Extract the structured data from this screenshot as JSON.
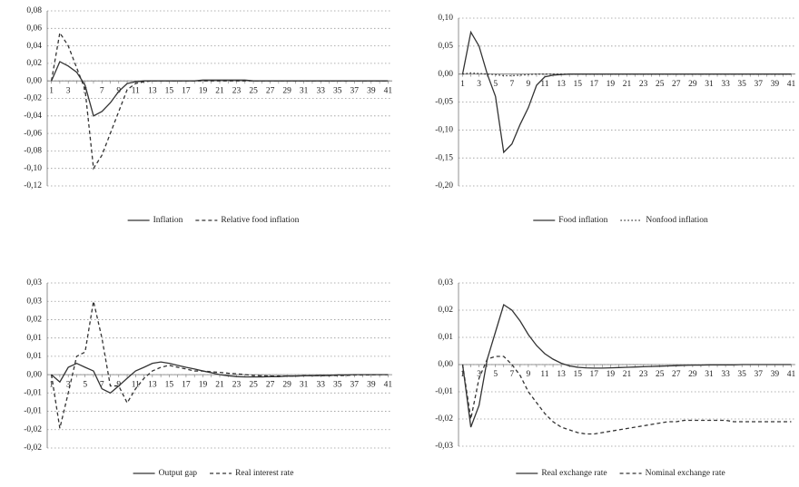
{
  "chart_data": [
    {
      "type": "line",
      "categories": [
        "1",
        null,
        "3",
        null,
        "5",
        null,
        "7",
        null,
        "9",
        null,
        "11",
        null,
        "13",
        null,
        "15",
        null,
        "17",
        null,
        "19",
        null,
        "21",
        null,
        "23",
        null,
        "25",
        null,
        "27",
        null,
        "29",
        null,
        "31",
        null,
        "33",
        null,
        "35",
        null,
        "37",
        null,
        "39",
        null,
        "41"
      ],
      "ylim": [
        -0.12,
        0.08
      ],
      "yticks": [
        {
          "value": 0.08,
          "label": "0,08"
        },
        {
          "value": 0.06,
          "label": "0,06"
        },
        {
          "value": 0.04,
          "label": "0,04"
        },
        {
          "value": 0.02,
          "label": "0,02"
        },
        {
          "value": 0,
          "label": "0,00"
        },
        {
          "value": -0.02,
          "label": "-0,02"
        },
        {
          "value": -0.04,
          "label": "-0,04"
        },
        {
          "value": -0.06,
          "label": "-0,06"
        },
        {
          "value": -0.08,
          "label": "-0,08"
        },
        {
          "value": -0.1,
          "label": "-0,10"
        },
        {
          "value": -0.12,
          "label": "-0,12"
        }
      ],
      "grid": true,
      "series": [
        {
          "name": "Inflation",
          "color": "#333333",
          "dash": "solid",
          "values": [
            0,
            0.022,
            0.017,
            0.01,
            -0.005,
            -0.04,
            -0.035,
            -0.025,
            -0.012,
            -0.003,
            -0.001,
            0,
            0,
            0,
            0,
            0,
            0,
            0,
            0.001,
            0.001,
            0.001,
            0.001,
            0.001,
            0.001,
            0,
            0,
            0,
            0,
            0,
            0,
            0,
            0,
            0,
            0,
            0,
            0,
            0,
            0,
            0,
            0,
            0
          ]
        },
        {
          "name": "Relative food inflation",
          "color": "#333333",
          "dash": "dashed",
          "values": [
            0,
            0.055,
            0.04,
            0.015,
            -0.01,
            -0.1,
            -0.085,
            -0.06,
            -0.035,
            -0.01,
            -0.003,
            -0.001,
            0,
            0,
            0,
            0,
            0,
            0,
            0,
            0,
            0,
            0,
            0,
            0,
            0,
            0,
            0,
            0,
            0,
            0,
            0,
            0,
            0,
            0,
            0,
            0,
            0,
            0,
            0,
            0,
            0
          ]
        }
      ]
    },
    {
      "type": "line",
      "categories": [
        "1",
        null,
        "3",
        null,
        "5",
        null,
        "7",
        null,
        "9",
        null,
        "11",
        null,
        "13",
        null,
        "15",
        null,
        "17",
        null,
        "19",
        null,
        "21",
        null,
        "23",
        null,
        "25",
        null,
        "27",
        null,
        "29",
        null,
        "31",
        null,
        "33",
        null,
        "35",
        null,
        "37",
        null,
        "39",
        null,
        "41"
      ],
      "ylim": [
        -0.2,
        0.1
      ],
      "yticks": [
        {
          "value": 0.1,
          "label": "0,10"
        },
        {
          "value": 0.05,
          "label": "0,05"
        },
        {
          "value": 0,
          "label": "0,00"
        },
        {
          "value": -0.05,
          "label": "-0,05"
        },
        {
          "value": -0.1,
          "label": "-0,10"
        },
        {
          "value": -0.15,
          "label": "-0,15"
        },
        {
          "value": -0.2,
          "label": "-0,20"
        }
      ],
      "grid": true,
      "series": [
        {
          "name": "Food inflation",
          "color": "#333333",
          "dash": "solid",
          "values": [
            0,
            0.075,
            0.05,
            0,
            -0.04,
            -0.14,
            -0.125,
            -0.09,
            -0.06,
            -0.02,
            -0.005,
            -0.002,
            -0.001,
            0,
            0,
            0,
            0,
            0,
            0,
            0,
            0,
            0,
            0,
            0,
            0,
            0,
            0,
            0,
            0,
            0,
            0,
            0,
            0,
            0,
            0,
            0,
            0,
            0,
            0,
            0,
            0
          ]
        },
        {
          "name": "Nonfood inflation",
          "color": "#333333",
          "dash": "dotted",
          "values": [
            0,
            0.002,
            0.001,
            0,
            -0.001,
            -0.003,
            -0.003,
            -0.002,
            -0.001,
            0,
            0,
            0,
            0,
            0,
            0,
            0,
            0,
            0,
            0,
            0,
            0,
            0,
            0,
            0,
            0,
            0,
            0,
            0,
            0,
            0,
            0,
            0,
            0,
            0,
            0,
            0,
            0,
            0,
            0,
            0,
            0
          ]
        }
      ]
    },
    {
      "type": "line",
      "categories": [
        "1",
        null,
        "3",
        null,
        "5",
        null,
        "7",
        null,
        "9",
        null,
        "11",
        null,
        "13",
        null,
        "15",
        null,
        "17",
        null,
        "19",
        null,
        "21",
        null,
        "23",
        null,
        "25",
        null,
        "27",
        null,
        "29",
        null,
        "31",
        null,
        "33",
        null,
        "35",
        null,
        "37",
        null,
        "39",
        null,
        "41"
      ],
      "ylim": [
        -0.026,
        0.0325
      ],
      "yticks": [
        {
          "value": 0.0325,
          "label": "0,03"
        },
        {
          "value": 0.026,
          "label": "0,03"
        },
        {
          "value": 0.0195,
          "label": "0,02"
        },
        {
          "value": 0.013,
          "label": "0,01"
        },
        {
          "value": 0.0065,
          "label": "0,01"
        },
        {
          "value": 0,
          "label": "0,00"
        },
        {
          "value": -0.0065,
          "label": "-0,01"
        },
        {
          "value": -0.013,
          "label": "-0,01"
        },
        {
          "value": -0.0195,
          "label": "-0,02"
        },
        {
          "value": -0.026,
          "label": "-0,02"
        }
      ],
      "grid": true,
      "series": [
        {
          "name": "Output gap",
          "color": "#333333",
          "dash": "solid",
          "values": [
            0,
            -0.0026,
            0.0026,
            0.004,
            0.0026,
            0.0013,
            -0.005,
            -0.0065,
            -0.004,
            -0.0013,
            0.0013,
            0.0026,
            0.004,
            0.0045,
            0.004,
            0.0033,
            0.0026,
            0.002,
            0.0013,
            0.0007,
            0,
            -0.0004,
            -0.0007,
            -0.0008,
            -0.0008,
            -0.0008,
            -0.0007,
            -0.0007,
            -0.0005,
            -0.0005,
            -0.0004,
            -0.0004,
            -0.0003,
            -0.0003,
            -0.0001,
            -0.0001,
            0,
            0,
            0,
            0,
            0
          ]
        },
        {
          "name": "Real interest rate",
          "color": "#333333",
          "dash": "dashed",
          "values": [
            0,
            -0.019,
            -0.0065,
            0.0065,
            0.008,
            0.026,
            0.013,
            -0.004,
            -0.004,
            -0.01,
            -0.005,
            -0.0013,
            0.0013,
            0.0026,
            0.0033,
            0.0026,
            0.002,
            0.0013,
            0.0013,
            0.001,
            0.0008,
            0.0005,
            0.0003,
            0,
            -0.0003,
            -0.0004,
            -0.0005,
            -0.0005,
            -0.0005,
            -0.0005,
            -0.0004,
            -0.0004,
            -0.0004,
            -0.0003,
            -0.0003,
            -0.0003,
            -0.0001,
            -0.0001,
            -0.0001,
            0,
            0
          ]
        }
      ]
    },
    {
      "type": "line",
      "categories": [
        "1",
        null,
        "3",
        null,
        "5",
        null,
        "7",
        null,
        "9",
        null,
        "11",
        null,
        "13",
        null,
        "15",
        null,
        "17",
        null,
        "19",
        null,
        "21",
        null,
        "23",
        null,
        "25",
        null,
        "27",
        null,
        "29",
        null,
        "31",
        null,
        "33",
        null,
        "35",
        null,
        "37",
        null,
        "39",
        null,
        "41"
      ],
      "ylim": [
        -0.03,
        0.03
      ],
      "yticks": [
        {
          "value": 0.03,
          "label": "0,03"
        },
        {
          "value": 0.02,
          "label": "0,02"
        },
        {
          "value": 0.01,
          "label": "0,01"
        },
        {
          "value": 0,
          "label": "0,00"
        },
        {
          "value": -0.01,
          "label": "-0,01"
        },
        {
          "value": -0.02,
          "label": "-0,02"
        },
        {
          "value": -0.03,
          "label": "-0,03"
        }
      ],
      "grid": true,
      "series": [
        {
          "name": "Real exchange rate",
          "color": "#333333",
          "dash": "solid",
          "values": [
            0,
            -0.023,
            -0.015,
            0.002,
            0.012,
            0.022,
            0.02,
            0.016,
            0.011,
            0.007,
            0.004,
            0.002,
            0.0005,
            -0.0005,
            -0.001,
            -0.0012,
            -0.0013,
            -0.0013,
            -0.0012,
            -0.0011,
            -0.001,
            -0.0009,
            -0.0008,
            -0.0007,
            -0.0006,
            -0.0005,
            -0.0004,
            -0.0003,
            -0.0002,
            -0.0002,
            -0.0001,
            -0.0001,
            -0.0001,
            -0.0001,
            0,
            0,
            0,
            0,
            0,
            0,
            0
          ]
        },
        {
          "name": "Nominal exchange rate",
          "color": "#333333",
          "dash": "dashed",
          "values": [
            0,
            -0.02,
            -0.005,
            0.002,
            0.003,
            0.003,
            0,
            -0.004,
            -0.01,
            -0.014,
            -0.018,
            -0.021,
            -0.023,
            -0.024,
            -0.025,
            -0.0255,
            -0.0255,
            -0.025,
            -0.0245,
            -0.024,
            -0.0235,
            -0.023,
            -0.0225,
            -0.022,
            -0.0215,
            -0.021,
            -0.021,
            -0.0205,
            -0.0205,
            -0.0205,
            -0.0205,
            -0.0205,
            -0.0205,
            -0.021,
            -0.021,
            -0.021,
            -0.021,
            -0.021,
            -0.021,
            -0.021,
            -0.021
          ]
        }
      ]
    }
  ]
}
